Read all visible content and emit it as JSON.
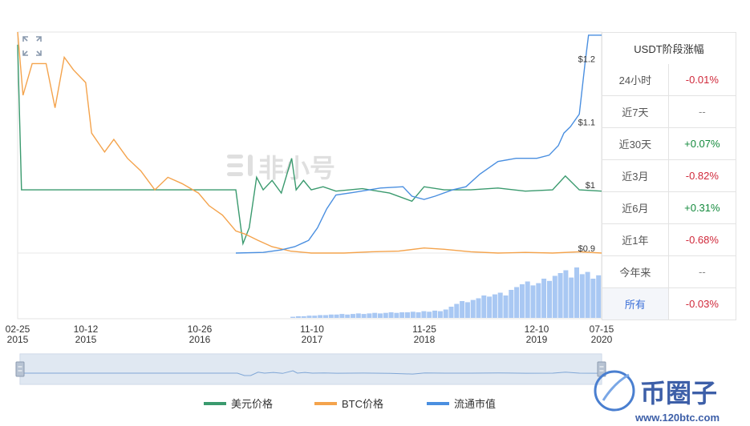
{
  "chart_data": {
    "type": "line",
    "x_ticks": [
      {
        "month_day": "02-25",
        "year": "2015"
      },
      {
        "month_day": "10-12",
        "year": "2015"
      },
      {
        "month_day": "10-26",
        "year": "2016"
      },
      {
        "month_day": "11-10",
        "year": "2017"
      },
      {
        "month_day": "11-25",
        "year": "2018"
      },
      {
        "month_day": "12-10",
        "year": "2019"
      },
      {
        "month_day": "07-15",
        "year": "2020"
      }
    ],
    "y_labels": [
      "$1.2",
      "$1.1",
      "$1",
      "$0.9"
    ],
    "y_range": [
      0.9,
      1.25
    ],
    "x_range": [
      "2015-02-25",
      "2020-07-15"
    ],
    "legend_position": "bottom",
    "series": [
      {
        "name": "美元价格",
        "color": "#3a9a6e",
        "points": [
          [
            "2015-02-25",
            1.23
          ],
          [
            "2015-03-10",
            1.0
          ],
          [
            "2015-06-01",
            1.0
          ],
          [
            "2016-01-01",
            1.0
          ],
          [
            "2016-06-01",
            1.0
          ],
          [
            "2016-10-01",
            1.0
          ],
          [
            "2017-03-01",
            1.0
          ],
          [
            "2017-03-25",
            0.915
          ],
          [
            "2017-04-15",
            0.94
          ],
          [
            "2017-05-10",
            1.02
          ],
          [
            "2017-06-01",
            1.0
          ],
          [
            "2017-07-01",
            1.015
          ],
          [
            "2017-08-01",
            0.995
          ],
          [
            "2017-09-05",
            1.05
          ],
          [
            "2017-09-20",
            1.0
          ],
          [
            "2017-10-15",
            1.015
          ],
          [
            "2017-11-10",
            1.0
          ],
          [
            "2017-12-20",
            1.005
          ],
          [
            "2018-02-01",
            0.998
          ],
          [
            "2018-05-01",
            1.002
          ],
          [
            "2018-08-01",
            0.995
          ],
          [
            "2018-10-15",
            0.982
          ],
          [
            "2018-11-25",
            1.005
          ],
          [
            "2019-02-01",
            1.0
          ],
          [
            "2019-05-01",
            1.0
          ],
          [
            "2019-08-01",
            1.003
          ],
          [
            "2019-11-01",
            0.998
          ],
          [
            "2020-02-01",
            1.0
          ],
          [
            "2020-03-15",
            1.022
          ],
          [
            "2020-05-01",
            1.0
          ],
          [
            "2020-07-15",
            0.998
          ]
        ]
      },
      {
        "name": "BTC价格",
        "color": "#f4a34c",
        "points": [
          [
            "2015-02-25",
            1.25
          ],
          [
            "2015-03-15",
            1.15
          ],
          [
            "2015-04-15",
            1.2
          ],
          [
            "2015-06-01",
            1.2
          ],
          [
            "2015-07-01",
            1.13
          ],
          [
            "2015-08-01",
            1.21
          ],
          [
            "2015-09-01",
            1.19
          ],
          [
            "2015-10-12",
            1.17
          ],
          [
            "2015-11-01",
            1.09
          ],
          [
            "2015-12-15",
            1.06
          ],
          [
            "2016-01-15",
            1.08
          ],
          [
            "2016-03-01",
            1.05
          ],
          [
            "2016-04-15",
            1.03
          ],
          [
            "2016-06-01",
            1.0
          ],
          [
            "2016-07-15",
            1.02
          ],
          [
            "2016-09-01",
            1.01
          ],
          [
            "2016-10-26",
            0.995
          ],
          [
            "2016-12-01",
            0.975
          ],
          [
            "2017-01-15",
            0.96
          ],
          [
            "2017-03-01",
            0.935
          ],
          [
            "2017-04-01",
            0.93
          ],
          [
            "2017-05-15",
            0.92
          ],
          [
            "2017-07-01",
            0.91
          ],
          [
            "2017-09-01",
            0.903
          ],
          [
            "2017-11-10",
            0.9
          ],
          [
            "2018-03-01",
            0.9
          ],
          [
            "2018-06-01",
            0.902
          ],
          [
            "2018-09-01",
            0.903
          ],
          [
            "2018-11-25",
            0.908
          ],
          [
            "2019-02-01",
            0.906
          ],
          [
            "2019-05-01",
            0.902
          ],
          [
            "2019-08-01",
            0.9
          ],
          [
            "2019-11-01",
            0.901
          ],
          [
            "2020-02-01",
            0.9
          ],
          [
            "2020-05-01",
            0.902
          ],
          [
            "2020-07-15",
            0.9
          ]
        ]
      },
      {
        "name": "流通市值",
        "color": "#4a8fe0",
        "points": [
          [
            "2017-03-01",
            0.9
          ],
          [
            "2017-06-01",
            0.901
          ],
          [
            "2017-08-01",
            0.905
          ],
          [
            "2017-09-15",
            0.91
          ],
          [
            "2017-11-01",
            0.92
          ],
          [
            "2017-12-01",
            0.94
          ],
          [
            "2018-01-01",
            0.97
          ],
          [
            "2018-02-01",
            0.992
          ],
          [
            "2018-04-01",
            0.996
          ],
          [
            "2018-07-01",
            1.003
          ],
          [
            "2018-09-15",
            1.005
          ],
          [
            "2018-10-15",
            0.99
          ],
          [
            "2018-11-25",
            0.985
          ],
          [
            "2019-01-01",
            0.99
          ],
          [
            "2019-03-01",
            1.0
          ],
          [
            "2019-04-15",
            1.005
          ],
          [
            "2019-06-01",
            1.025
          ],
          [
            "2019-08-01",
            1.045
          ],
          [
            "2019-10-01",
            1.05
          ],
          [
            "2019-12-10",
            1.05
          ],
          [
            "2020-01-20",
            1.055
          ],
          [
            "2020-02-20",
            1.07
          ],
          [
            "2020-03-10",
            1.09
          ],
          [
            "2020-04-01",
            1.1
          ],
          [
            "2020-05-01",
            1.12
          ],
          [
            "2020-05-20",
            1.2
          ],
          [
            "2020-06-01",
            1.245
          ],
          [
            "2020-07-15",
            1.245
          ]
        ]
      }
    ],
    "volume_bars": {
      "color": "#a9c8f3",
      "start": "2017-09-01",
      "end": "2020-07-15",
      "levels": [
        0.02,
        0.03,
        0.03,
        0.04,
        0.04,
        0.05,
        0.05,
        0.06,
        0.06,
        0.07,
        0.06,
        0.07,
        0.08,
        0.07,
        0.08,
        0.09,
        0.08,
        0.09,
        0.1,
        0.09,
        0.1,
        0.1,
        0.11,
        0.1,
        0.12,
        0.11,
        0.13,
        0.12,
        0.15,
        0.2,
        0.25,
        0.3,
        0.28,
        0.32,
        0.35,
        0.4,
        0.38,
        0.42,
        0.45,
        0.4,
        0.5,
        0.55,
        0.6,
        0.65,
        0.58,
        0.62,
        0.7,
        0.66,
        0.75,
        0.8,
        0.85,
        0.72,
        0.9,
        0.78,
        0.82,
        0.7,
        0.76
      ]
    }
  },
  "legend": [
    {
      "label": "美元价格",
      "color": "#3a9a6e"
    },
    {
      "label": "BTC价格",
      "color": "#f4a34c"
    },
    {
      "label": "流通市值",
      "color": "#4a8fe0"
    }
  ],
  "table": {
    "title": "USDT阶段涨幅",
    "rows": [
      {
        "label": "24小时",
        "value": "-0.01%",
        "kind": "neg"
      },
      {
        "label": "近7天",
        "value": "--",
        "kind": "dash"
      },
      {
        "label": "近30天",
        "value": "+0.07%",
        "kind": "pos"
      },
      {
        "label": "近3月",
        "value": "-0.82%",
        "kind": "neg"
      },
      {
        "label": "近6月",
        "value": "+0.31%",
        "kind": "pos"
      },
      {
        "label": "近1年",
        "value": "-0.68%",
        "kind": "neg"
      },
      {
        "label": "今年来",
        "value": "--",
        "kind": "dash"
      },
      {
        "label": "所有",
        "value": "-0.03%",
        "kind": "neg"
      }
    ]
  },
  "watermark": "非小号",
  "brand": {
    "name": "币圈子",
    "url": "www.120btc.com"
  }
}
